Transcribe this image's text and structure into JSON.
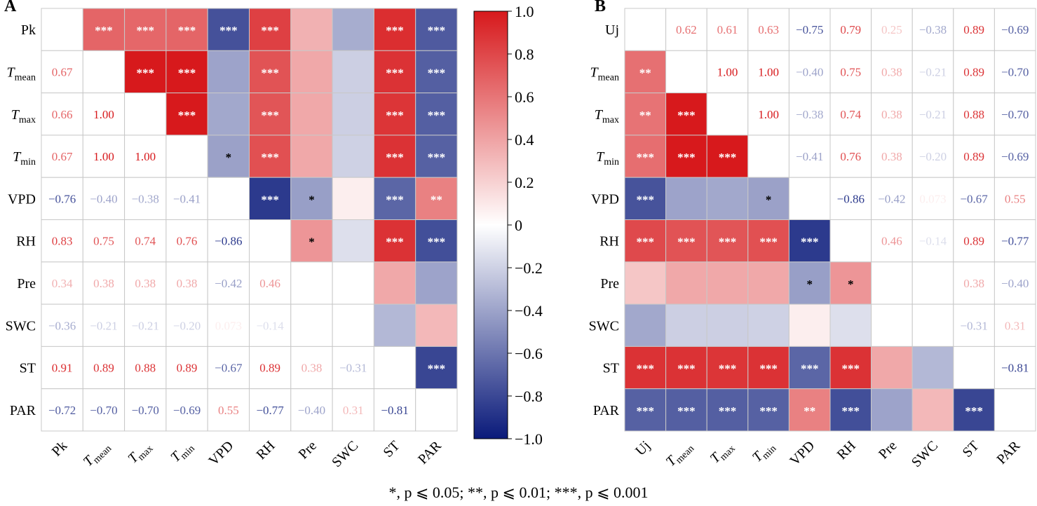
{
  "panels": [
    {
      "label": "A",
      "first_var": "Pk",
      "lower": "values",
      "upper": "sig"
    },
    {
      "label": "B",
      "first_var": "Uj",
      "lower": "sig",
      "upper": "values"
    }
  ],
  "footnote": "*, p ⩽ 0.05; **, p ⩽ 0.01; ***, p ⩽ 0.001",
  "chart_data": {
    "type": "heatmap",
    "variables": [
      {
        "base": "",
        "sub": ""
      },
      {
        "base": "T",
        "sub": "mean"
      },
      {
        "base": "T",
        "sub": "max"
      },
      {
        "base": "T",
        "sub": "min"
      },
      {
        "base": "VPD",
        "sub": ""
      },
      {
        "base": "RH",
        "sub": ""
      },
      {
        "base": "Pre",
        "sub": ""
      },
      {
        "base": "SWC",
        "sub": ""
      },
      {
        "base": "ST",
        "sub": ""
      },
      {
        "base": "PAR",
        "sub": ""
      }
    ],
    "colorbar": {
      "min": -1.0,
      "max": 1.0,
      "ticks": [
        "1.0",
        "0.8",
        "0.6",
        "0.4",
        "0.2",
        "0",
        "−0.2",
        "−0.4",
        "−0.6",
        "−0.8",
        "−1.0"
      ],
      "tick_values": [
        1.0,
        0.8,
        0.6,
        0.4,
        0.2,
        0,
        -0.2,
        -0.4,
        -0.6,
        -0.8,
        -1.0
      ],
      "colors": {
        "low": "#0a1a7a",
        "mid": "#ffffff",
        "high": "#d7191c"
      }
    },
    "matrices": [
      {
        "values": [
          [
            null,
            0.67,
            0.66,
            0.67,
            -0.76,
            0.83,
            0.34,
            -0.36,
            0.91,
            -0.72
          ],
          [
            0.67,
            null,
            1.0,
            1.0,
            -0.4,
            0.75,
            0.38,
            -0.21,
            0.89,
            -0.7
          ],
          [
            0.66,
            1.0,
            null,
            1.0,
            -0.38,
            0.74,
            0.38,
            -0.21,
            0.88,
            -0.7
          ],
          [
            0.67,
            1.0,
            1.0,
            null,
            -0.41,
            0.76,
            0.38,
            -0.2,
            0.89,
            -0.69
          ],
          [
            -0.76,
            -0.4,
            -0.38,
            -0.41,
            null,
            -0.86,
            -0.42,
            0.073,
            -0.67,
            0.55
          ],
          [
            0.83,
            0.75,
            0.74,
            0.76,
            -0.86,
            null,
            0.46,
            -0.14,
            0.89,
            -0.77
          ],
          [
            0.34,
            0.38,
            0.38,
            0.38,
            -0.42,
            0.46,
            null,
            null,
            0.38,
            -0.4
          ],
          [
            -0.36,
            -0.21,
            -0.21,
            -0.2,
            0.073,
            -0.14,
            null,
            null,
            -0.31,
            0.31
          ],
          [
            0.91,
            0.89,
            0.88,
            0.89,
            -0.67,
            0.89,
            0.38,
            -0.31,
            null,
            -0.81
          ],
          [
            -0.72,
            -0.7,
            -0.7,
            -0.69,
            0.55,
            -0.77,
            -0.4,
            0.31,
            -0.81,
            null
          ]
        ],
        "labels": [
          [
            "",
            "0.67",
            "0.66",
            "0.67",
            "−0.76",
            "0.83",
            "0.34",
            "−0.36",
            "0.91",
            "−0.72"
          ],
          [
            "0.67",
            "",
            "1.00",
            "1.00",
            "−0.40",
            "0.75",
            "0.38",
            "−0.21",
            "0.89",
            "−0.70"
          ],
          [
            "0.66",
            "1.00",
            "",
            "1.00",
            "−0.38",
            "0.74",
            "0.38",
            "−0.21",
            "0.88",
            "−0.70"
          ],
          [
            "0.67",
            "1.00",
            "1.00",
            "",
            "−0.41",
            "0.76",
            "0.38",
            "−0.20",
            "0.89",
            "−0.69"
          ],
          [
            "−0.76",
            "−0.40",
            "−0.38",
            "−0.41",
            "",
            "−0.86",
            "−0.42",
            "0.073",
            "−0.67",
            "0.55"
          ],
          [
            "0.83",
            "0.75",
            "0.74",
            "0.76",
            "−0.86",
            "",
            "0.46",
            "−0.14",
            "0.89",
            "−0.77"
          ],
          [
            "0.34",
            "0.38",
            "0.38",
            "0.38",
            "−0.42",
            "0.46",
            "",
            "",
            "0.38",
            "−0.40"
          ],
          [
            "−0.36",
            "−0.21",
            "−0.21",
            "−0.20",
            "0.073",
            "−0.14",
            "",
            "",
            "−0.31",
            "0.31"
          ],
          [
            "0.91",
            "0.89",
            "0.88",
            "0.89",
            "−0.67",
            "0.89",
            "0.38",
            "−0.31",
            "",
            "−0.81"
          ],
          [
            "−0.72",
            "−0.70",
            "−0.70",
            "−0.69",
            "0.55",
            "−0.77",
            "−0.40",
            "0.31",
            "−0.81",
            ""
          ]
        ],
        "sig": [
          [
            "",
            "***",
            "***",
            "***",
            "***",
            "***",
            "",
            "",
            "***",
            "***"
          ],
          [
            "***",
            "",
            "***",
            "***",
            "",
            "***",
            "",
            "",
            "***",
            "***"
          ],
          [
            "***",
            "***",
            "",
            "***",
            "",
            "***",
            "",
            "",
            "***",
            "***"
          ],
          [
            "***",
            "***",
            "***",
            "",
            "*",
            "***",
            "",
            "",
            "***",
            "***"
          ],
          [
            "***",
            "",
            "",
            "*",
            "",
            "***",
            "*",
            "",
            "***",
            "**"
          ],
          [
            "***",
            "***",
            "***",
            "***",
            "***",
            "",
            "*",
            "",
            "***",
            "***"
          ],
          [
            "",
            "",
            "",
            "",
            "*",
            "*",
            "",
            "",
            "",
            ""
          ],
          [
            "",
            "",
            "",
            "",
            "",
            "",
            "",
            "",
            "",
            ""
          ],
          [
            "***",
            "***",
            "***",
            "***",
            "***",
            "***",
            "",
            "",
            "",
            "***"
          ],
          [
            "***",
            "***",
            "***",
            "***",
            "**",
            "***",
            "",
            "",
            "***",
            ""
          ]
        ]
      },
      {
        "values": [
          [
            null,
            0.62,
            0.61,
            0.63,
            -0.75,
            0.79,
            0.25,
            -0.38,
            0.89,
            -0.69
          ],
          [
            0.62,
            null,
            1.0,
            1.0,
            -0.4,
            0.75,
            0.38,
            -0.21,
            0.89,
            -0.7
          ],
          [
            0.61,
            1.0,
            null,
            1.0,
            -0.38,
            0.74,
            0.38,
            -0.21,
            0.88,
            -0.7
          ],
          [
            0.63,
            1.0,
            1.0,
            null,
            -0.41,
            0.76,
            0.38,
            -0.2,
            0.89,
            -0.69
          ],
          [
            -0.75,
            -0.4,
            -0.38,
            -0.41,
            null,
            -0.86,
            -0.42,
            0.073,
            -0.67,
            0.55
          ],
          [
            0.79,
            0.75,
            0.74,
            0.76,
            -0.86,
            null,
            0.46,
            -0.14,
            0.89,
            -0.77
          ],
          [
            0.25,
            0.38,
            0.38,
            0.38,
            -0.42,
            0.46,
            null,
            null,
            0.38,
            -0.4
          ],
          [
            -0.38,
            -0.21,
            -0.21,
            -0.2,
            0.073,
            -0.14,
            null,
            null,
            -0.31,
            0.31
          ],
          [
            0.89,
            0.89,
            0.88,
            0.89,
            -0.67,
            0.89,
            0.38,
            -0.31,
            null,
            -0.81
          ],
          [
            -0.69,
            -0.7,
            -0.7,
            -0.69,
            0.55,
            -0.77,
            -0.4,
            0.31,
            -0.81,
            null
          ]
        ],
        "labels": [
          [
            "",
            "0.62",
            "0.61",
            "0.63",
            "−0.75",
            "0.79",
            "0.25",
            "−0.38",
            "0.89",
            "−0.69"
          ],
          [
            "0.62",
            "",
            "1.00",
            "1.00",
            "−0.40",
            "0.75",
            "0.38",
            "−0.21",
            "0.89",
            "−0.70"
          ],
          [
            "0.61",
            "1.00",
            "",
            "1.00",
            "−0.38",
            "0.74",
            "0.38",
            "−0.21",
            "0.88",
            "−0.70"
          ],
          [
            "0.63",
            "1.00",
            "1.00",
            "",
            "−0.41",
            "0.76",
            "0.38",
            "−0.20",
            "0.89",
            "−0.69"
          ],
          [
            "−0.75",
            "−0.40",
            "−0.38",
            "−0.41",
            "",
            "−0.86",
            "−0.42",
            "0.073",
            "−0.67",
            "0.55"
          ],
          [
            "0.79",
            "0.75",
            "0.74",
            "0.76",
            "−0.86",
            "",
            "0.46",
            "−0.14",
            "0.89",
            "−0.77"
          ],
          [
            "0.25",
            "0.38",
            "0.38",
            "0.38",
            "−0.42",
            "0.46",
            "",
            "",
            "0.38",
            "−0.40"
          ],
          [
            "−0.38",
            "−0.21",
            "−0.21",
            "−0.20",
            "0.073",
            "−0.14",
            "",
            "",
            "−0.31",
            "0.31"
          ],
          [
            "0.89",
            "0.89",
            "0.88",
            "0.89",
            "−0.67",
            "0.89",
            "0.38",
            "−0.31",
            "",
            "−0.81"
          ],
          [
            "−0.69",
            "−0.70",
            "−0.70",
            "−0.69",
            "0.55",
            "−0.77",
            "−0.40",
            "0.31",
            "−0.81",
            ""
          ]
        ],
        "sig": [
          [
            "",
            "**",
            "**",
            "***",
            "***",
            "***",
            "",
            "",
            "***",
            "***"
          ],
          [
            "**",
            "",
            "***",
            "***",
            "",
            "***",
            "",
            "",
            "***",
            "***"
          ],
          [
            "**",
            "***",
            "",
            "***",
            "",
            "***",
            "",
            "",
            "***",
            "***"
          ],
          [
            "***",
            "***",
            "***",
            "",
            "*",
            "***",
            "",
            "",
            "***",
            "***"
          ],
          [
            "***",
            "",
            "",
            "*",
            "",
            "***",
            "*",
            "",
            "***",
            "**"
          ],
          [
            "***",
            "***",
            "***",
            "***",
            "***",
            "",
            "*",
            "",
            "***",
            "***"
          ],
          [
            "",
            "",
            "",
            "",
            "*",
            "*",
            "",
            "",
            "",
            ""
          ],
          [
            "",
            "",
            "",
            "",
            "",
            "",
            "",
            "",
            "",
            ""
          ],
          [
            "***",
            "***",
            "***",
            "***",
            "***",
            "***",
            "",
            "",
            "",
            "***"
          ],
          [
            "***",
            "***",
            "***",
            "***",
            "**",
            "***",
            "",
            "",
            "***",
            ""
          ]
        ]
      }
    ]
  }
}
